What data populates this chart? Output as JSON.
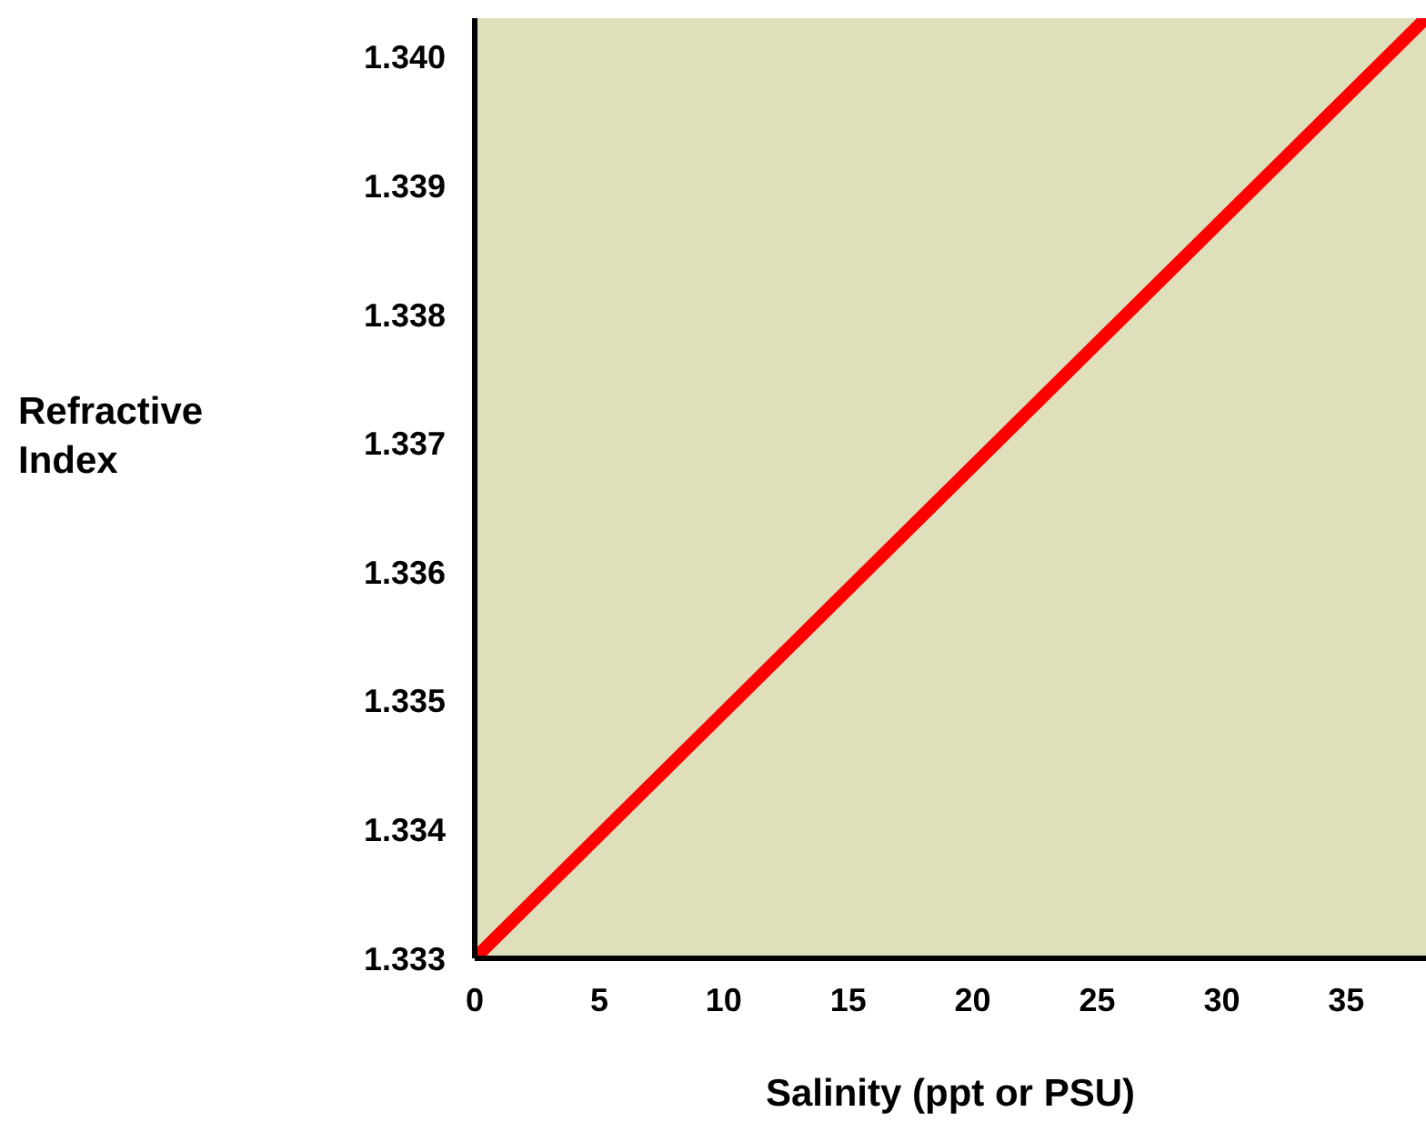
{
  "chart_data": {
    "type": "line",
    "xlabel": "Salinity (ppt or PSU)",
    "ylabel": "Refractive Index",
    "x": [
      0,
      38.2
    ],
    "series": [
      {
        "color": "#ff0000",
        "values": [
          1.333,
          1.3403
        ]
      }
    ],
    "xlim": [
      0,
      38.2
    ],
    "xticks": [
      0,
      5,
      10,
      15,
      20,
      25,
      30,
      35
    ],
    "ylim": [
      1.333,
      1.3403
    ],
    "yticks": [
      1.333,
      1.334,
      1.335,
      1.336,
      1.337,
      1.338,
      1.339,
      {
        "value": 1.34,
        "label": "1.340"
      }
    ],
    "grid": false,
    "marker": "none",
    "line_style": "solid"
  }
}
